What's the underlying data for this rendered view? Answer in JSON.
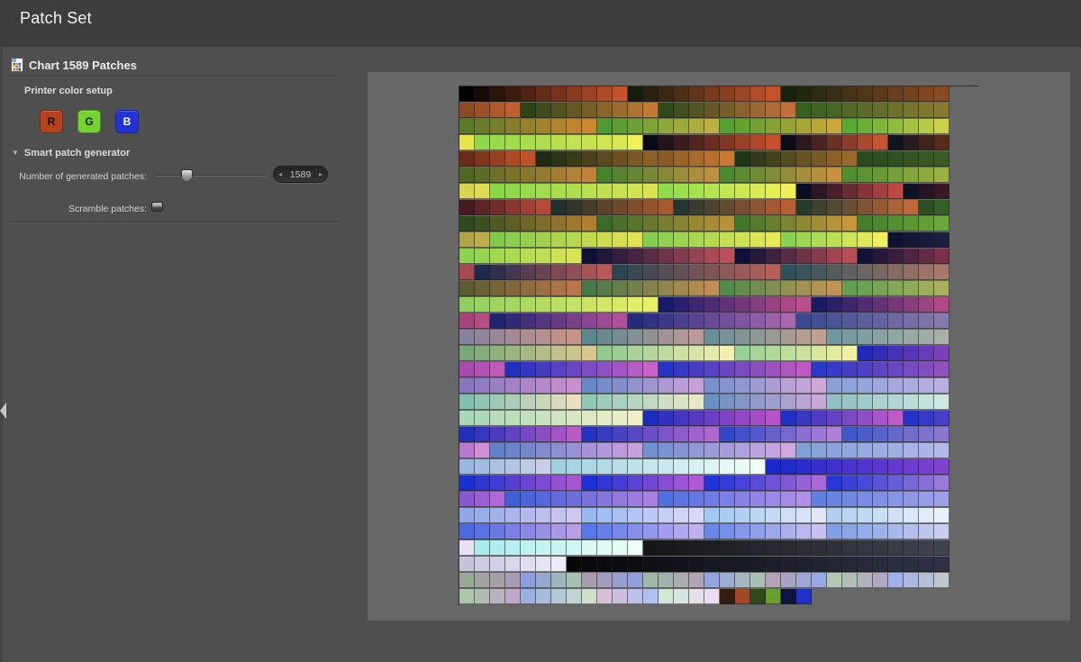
{
  "title_bar": {
    "title": "Patch Set"
  },
  "sidebar": {
    "header": {
      "label": "Chart 1589 Patches"
    },
    "printer_color_setup": {
      "label": "Printer color setup",
      "channels": [
        {
          "label": "R",
          "color": "#b5421f",
          "text_color": "#1c0c06"
        },
        {
          "label": "G",
          "color": "#74d331",
          "text_color": "#0d2206"
        },
        {
          "label": "B",
          "color": "#2032d8",
          "text_color": "#ffffff"
        }
      ]
    },
    "smart_patch_generator": {
      "label": "Smart patch generator",
      "collapse_icon": "▼",
      "expanded": true,
      "patches_label": "Number of generated patches:",
      "patches_value": "1589",
      "slider_percent": 28,
      "spinner_prev": "◂",
      "spinner_next": "▸",
      "scramble_label": "Scramble patches:",
      "scramble_checked": false
    }
  },
  "chart": {
    "columns": 32,
    "rows": [
      {
        "segments": [
          {
            "f": "#030303",
            "t": "#c4522a",
            "n": 11
          },
          {
            "f": "#141c0c",
            "t": "#c4522a",
            "n": 10
          },
          {
            "f": "#18220e",
            "t": "#8a4a22",
            "n": 11
          }
        ]
      },
      {
        "segments": [
          {
            "f": "#8a4a22",
            "t": "#c06030",
            "n": 4
          },
          {
            "f": "#2c4418",
            "t": "#c07a32",
            "n": 9
          },
          {
            "f": "#2e4a1c",
            "t": "#c07038",
            "n": 9
          },
          {
            "f": "#346020",
            "t": "#8a7a30",
            "n": 10
          }
        ]
      },
      {
        "segments": [
          {
            "f": "#5a7a28",
            "t": "#cc8830",
            "n": 9
          },
          {
            "f": "#4e9a30",
            "t": "#bcb044",
            "n": 8
          },
          {
            "f": "#52a030",
            "t": "#c8a838",
            "n": 8
          },
          {
            "f": "#58aa32",
            "t": "#cad04a",
            "n": 7
          }
        ]
      },
      {
        "segments": [
          {
            "f": "#e8e44e",
            "t": "#e8e44e",
            "n": 1
          },
          {
            "f": "#90d84a",
            "t": "#d8e850",
            "n": 10
          },
          {
            "f": "#f0f058",
            "t": "#f0f058",
            "n": 1
          },
          {
            "f": "#0a0a16",
            "t": "#c8502c",
            "n": 9
          },
          {
            "f": "#0a0c18",
            "t": "#c85430",
            "n": 7
          },
          {
            "f": "#10141e",
            "t": "#5a2a18",
            "n": 4
          }
        ]
      },
      {
        "segments": [
          {
            "f": "#6a2c18",
            "t": "#c05428",
            "n": 5
          },
          {
            "f": "#1c2c14",
            "t": "#8a6024",
            "n": 8
          },
          {
            "f": "#8a5c24",
            "t": "#c87830",
            "n": 5
          },
          {
            "f": "#203618",
            "t": "#9a6828",
            "n": 8
          },
          {
            "f": "#2a4a1e",
            "t": "#3a5c24",
            "n": 6
          }
        ]
      },
      {
        "segments": [
          {
            "f": "#4e6824",
            "t": "#c08438",
            "n": 9
          },
          {
            "f": "#45822c",
            "t": "#bc9040",
            "n": 8
          },
          {
            "f": "#4a8a2e",
            "t": "#c89040",
            "n": 8
          },
          {
            "f": "#508e30",
            "t": "#9ab040",
            "n": 7
          }
        ]
      },
      {
        "segments": [
          {
            "f": "#d8d44e",
            "t": "#e0dc52",
            "n": 2
          },
          {
            "f": "#88d848",
            "t": "#d8e455",
            "n": 11
          },
          {
            "f": "#90dc4c",
            "t": "#f0f058",
            "n": 9
          },
          {
            "f": "#0c0c20",
            "t": "#c04840",
            "n": 7
          },
          {
            "f": "#0e1226",
            "t": "#3a1626",
            "n": 3
          }
        ]
      },
      {
        "segments": [
          {
            "f": "#451a20",
            "t": "#b44a38",
            "n": 6
          },
          {
            "f": "#20302a",
            "t": "#a85a2c",
            "n": 8
          },
          {
            "f": "#243630",
            "t": "#b86034",
            "n": 8
          },
          {
            "f": "#283c2e",
            "t": "#c06838",
            "n": 8
          },
          {
            "f": "#2c5024",
            "t": "#346028",
            "n": 2
          }
        ]
      },
      {
        "segments": [
          {
            "f": "#2c4a1e",
            "t": "#b08030",
            "n": 9
          },
          {
            "f": "#3a6a28",
            "t": "#b89038",
            "n": 9
          },
          {
            "f": "#40762a",
            "t": "#c89838",
            "n": 8
          },
          {
            "f": "#44802c",
            "t": "#6aa838",
            "n": 6
          }
        ]
      },
      {
        "segments": [
          {
            "f": "#b0a44a",
            "t": "#bcae4e",
            "n": 2
          },
          {
            "f": "#80ca4e",
            "t": "#e2e252",
            "n": 10
          },
          {
            "f": "#84ce50",
            "t": "#e8e856",
            "n": 9
          },
          {
            "f": "#8ad252",
            "t": "#f0ee5a",
            "n": 7
          },
          {
            "f": "#0e1230",
            "t": "#1c1e40",
            "n": 4
          }
        ]
      },
      {
        "segments": [
          {
            "f": "#8cd450",
            "t": "#d8e455",
            "n": 8
          },
          {
            "f": "#0e1038",
            "t": "#bc5058",
            "n": 10
          },
          {
            "f": "#0e1038",
            "t": "#b84e55",
            "n": 8
          },
          {
            "f": "#101238",
            "t": "#7a3048",
            "n": 6
          }
        ]
      },
      {
        "segments": [
          {
            "f": "#a84850",
            "t": "#a84850",
            "n": 1
          },
          {
            "f": "#1e2a4e",
            "t": "#b85a58",
            "n": 9
          },
          {
            "f": "#2a4652",
            "t": "#b86058",
            "n": 11
          },
          {
            "f": "#30505a",
            "t": "#a87868",
            "n": 11
          }
        ]
      },
      {
        "segments": [
          {
            "f": "#5c5c30",
            "t": "#b87848",
            "n": 8
          },
          {
            "f": "#48784a",
            "t": "#c08c50",
            "n": 9
          },
          {
            "f": "#528c4c",
            "t": "#c09454",
            "n": 8
          },
          {
            "f": "#60a050",
            "t": "#a8b058",
            "n": 7
          }
        ]
      },
      {
        "segments": [
          {
            "f": "#8ed05e",
            "t": "#e8f068",
            "n": 13
          },
          {
            "f": "#181a6e",
            "t": "#bc4e8a",
            "n": 10
          },
          {
            "f": "#181a66",
            "t": "#b04a86",
            "n": 9
          }
        ]
      },
      {
        "segments": [
          {
            "f": "#a8427c",
            "t": "#b84c84",
            "n": 2
          },
          {
            "f": "#1e2472",
            "t": "#b0509a",
            "n": 9
          },
          {
            "f": "#242c80",
            "t": "#a868b0",
            "n": 11
          },
          {
            "f": "#3a4a90",
            "t": "#8878b0",
            "n": 10
          }
        ]
      },
      {
        "segments": [
          {
            "f": "#8882a0",
            "t": "#c89488",
            "n": 8
          },
          {
            "f": "#5a8890",
            "t": "#bc9a98",
            "n": 8
          },
          {
            "f": "#68909a",
            "t": "#c0a090",
            "n": 8
          },
          {
            "f": "#7098a0",
            "t": "#a8b0a8",
            "n": 8
          }
        ]
      },
      {
        "segments": [
          {
            "f": "#78a878",
            "t": "#d8c890",
            "n": 9
          },
          {
            "f": "#90c890",
            "t": "#f0eeb0",
            "n": 9
          },
          {
            "f": "#98d098",
            "t": "#f0f0a0",
            "n": 8
          },
          {
            "f": "#2028b8",
            "t": "#7a40b8",
            "n": 6
          }
        ]
      },
      {
        "segments": [
          {
            "f": "#a84aae",
            "t": "#c05ab8",
            "n": 3
          },
          {
            "f": "#2030c0",
            "t": "#c862c8",
            "n": 10
          },
          {
            "f": "#2434c4",
            "t": "#c05ac0",
            "n": 10
          },
          {
            "f": "#2838c8",
            "t": "#9050c0",
            "n": 9
          }
        ]
      },
      {
        "segments": [
          {
            "f": "#8878c0",
            "t": "#c890d0",
            "n": 8
          },
          {
            "f": "#6888c8",
            "t": "#c8a0d8",
            "n": 8
          },
          {
            "f": "#7890d0",
            "t": "#d0a8d8",
            "n": 8
          },
          {
            "f": "#88a0d8",
            "t": "#bab0e2",
            "n": 8
          }
        ]
      },
      {
        "segments": [
          {
            "f": "#80c0b0",
            "t": "#e8e0c0",
            "n": 8
          },
          {
            "f": "#90c8b8",
            "t": "#e8e8c8",
            "n": 8
          },
          {
            "f": "#6890c0",
            "t": "#c8a8d8",
            "n": 8
          },
          {
            "f": "#90c0c0",
            "t": "#cce8e0",
            "n": 8
          }
        ]
      },
      {
        "segments": [
          {
            "f": "#a8d8b8",
            "t": "#f0f0c8",
            "n": 12
          },
          {
            "f": "#1c2cc0",
            "t": "#b852c8",
            "n": 9
          },
          {
            "f": "#2030c4",
            "t": "#c05ac8",
            "n": 8
          },
          {
            "f": "#2434c8",
            "t": "#4840cc",
            "n": 3
          }
        ]
      },
      {
        "segments": [
          {
            "f": "#2030bc",
            "t": "#b85ac8",
            "n": 8
          },
          {
            "f": "#2434c0",
            "t": "#b068d0",
            "n": 9
          },
          {
            "f": "#3048c8",
            "t": "#b080d8",
            "n": 8
          },
          {
            "f": "#4058c8",
            "t": "#8878d0",
            "n": 7
          }
        ]
      },
      {
        "segments": [
          {
            "f": "#b878d0",
            "t": "#d090d8",
            "n": 2
          },
          {
            "f": "#6080c8",
            "t": "#c8a0e0",
            "n": 10
          },
          {
            "f": "#7090d0",
            "t": "#d0a8e0",
            "n": 10
          },
          {
            "f": "#80a0d8",
            "t": "#b2b8e8",
            "n": 10
          }
        ]
      },
      {
        "segments": [
          {
            "f": "#98b8e0",
            "t": "#c8d0e8",
            "n": 6
          },
          {
            "f": "#a0d0e0",
            "t": "#f0fff8",
            "n": 14
          },
          {
            "f": "#1828cc",
            "t": "#8040d0",
            "n": 12
          }
        ]
      },
      {
        "segments": [
          {
            "f": "#1830d0",
            "t": "#a855d4",
            "n": 8
          },
          {
            "f": "#1c32d4",
            "t": "#b058d8",
            "n": 8
          },
          {
            "f": "#2034d8",
            "t": "#a868d8",
            "n": 8
          },
          {
            "f": "#2838d8",
            "t": "#9878d8",
            "n": 8
          }
        ]
      },
      {
        "segments": [
          {
            "f": "#8858d0",
            "t": "#b068d8",
            "n": 3
          },
          {
            "f": "#4060d8",
            "t": "#a880e0",
            "n": 10
          },
          {
            "f": "#5070e0",
            "t": "#b090e8",
            "n": 10
          },
          {
            "f": "#6080e0",
            "t": "#a0a0e8",
            "n": 9
          }
        ]
      },
      {
        "segments": [
          {
            "f": "#90a8e8",
            "t": "#d0c8f0",
            "n": 8
          },
          {
            "f": "#98b8f0",
            "t": "#d8d8f8",
            "n": 8
          },
          {
            "f": "#a0c8f0",
            "t": "#e0e8f8",
            "n": 8
          },
          {
            "f": "#b0d0f0",
            "t": "#eaf0fa",
            "n": 8
          }
        ]
      },
      {
        "segments": [
          {
            "f": "#4a6ae0",
            "t": "#b8a0e8",
            "n": 8
          },
          {
            "f": "#5878e8",
            "t": "#c0b0f0",
            "n": 8
          },
          {
            "f": "#6888e8",
            "t": "#c8c0f0",
            "n": 8
          },
          {
            "f": "#80a0e8",
            "t": "#c8ccf0",
            "n": 8
          }
        ]
      },
      {
        "segments": [
          {
            "f": "#e8e0f4",
            "t": "#e8e0f4",
            "n": 1
          },
          {
            "f": "#a8ecec",
            "t": "#ecfff8",
            "n": 11
          },
          {
            "f": "#161618",
            "t": "#3e434e",
            "n": 20
          }
        ]
      },
      {
        "segments": [
          {
            "f": "#c4c4dc",
            "t": "#ecebf8",
            "n": 7
          },
          {
            "f": "#070708",
            "t": "#2e3244",
            "n": 25
          }
        ]
      },
      {
        "segments": [
          {
            "f": "#9aa898",
            "t": "#a89cb0",
            "n": 4
          },
          {
            "f": "#8c9cdc",
            "t": "#a8c0b0",
            "n": 4
          },
          {
            "f": "#a89cb0",
            "t": "#90a0dc",
            "n": 4
          },
          {
            "f": "#a0b8a8",
            "t": "#b0a4b4",
            "n": 4
          },
          {
            "f": "#94a4e0",
            "t": "#aac0b4",
            "n": 4
          },
          {
            "f": "#b0a4b4",
            "t": "#98a8e4",
            "n": 4
          },
          {
            "f": "#b2c8b4",
            "t": "#b0a8c0",
            "n": 4
          },
          {
            "f": "#9fb0ea",
            "t": "#c0c8cc",
            "n": 4
          }
        ]
      },
      {
        "segments": [
          {
            "f": "#a8c8a8",
            "t": "#c0a8c8",
            "n": 4
          },
          {
            "f": "#9cb0e0",
            "t": "#cce0cc",
            "n": 5
          },
          {
            "f": "#d8c0d8",
            "t": "#b0c0f0",
            "n": 4
          },
          {
            "f": "#d0e8d8",
            "t": "#ecdcf0",
            "n": 4
          },
          {
            "f": "#351c10",
            "t": "#351c10",
            "n": 1
          },
          {
            "f": "#a04828",
            "t": "#a04828",
            "n": 1
          },
          {
            "f": "#2c4a1c",
            "t": "#2c4a1c",
            "n": 1
          },
          {
            "f": "#68a030",
            "t": "#68a030",
            "n": 1
          },
          {
            "f": "#0e1440",
            "t": "#0e1440",
            "n": 1
          },
          {
            "f": "#2030c8",
            "t": "#2030c8",
            "n": 1
          }
        ]
      }
    ]
  }
}
